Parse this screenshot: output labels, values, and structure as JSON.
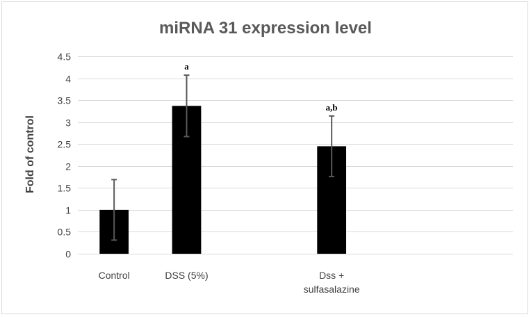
{
  "chart_data": {
    "type": "bar",
    "title": "miRNA 31 expression level",
    "ylabel": "Fold of control",
    "xlabel": "",
    "categories": [
      "Control",
      "DSS (5%)",
      "Dss + sulfasalazine"
    ],
    "category_lines": [
      [
        "Control"
      ],
      [
        "DSS (5%)"
      ],
      [
        "Dss +",
        "sulfasalazine"
      ]
    ],
    "category_slots": [
      0,
      1,
      3
    ],
    "slot_count": 6,
    "values": [
      1.0,
      3.37,
      2.45
    ],
    "error": [
      0.69,
      0.7,
      0.69
    ],
    "annotations": [
      "",
      "a",
      "a,b"
    ],
    "ylim": [
      0,
      4.5
    ],
    "yticks": [
      0,
      0.5,
      1,
      1.5,
      2,
      2.5,
      3,
      3.5,
      4,
      4.5
    ],
    "grid": true,
    "colors": {
      "bar": "#000000",
      "grid": "#d9d9d9",
      "error": "#595959"
    }
  }
}
